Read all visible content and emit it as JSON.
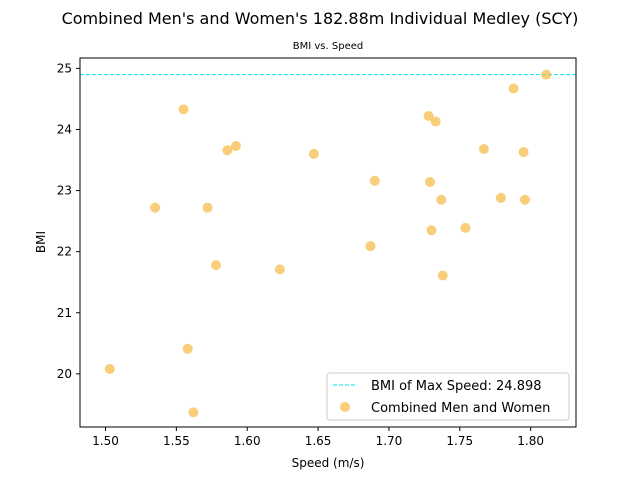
{
  "chart_data": {
    "type": "scatter",
    "title": "Combined Men's and Women's 182.88m Individual Medley (SCY)",
    "subtitle": "BMI vs. Speed",
    "xlabel": "Speed (m/s)",
    "ylabel": "BMI",
    "xlim": [
      1.482,
      1.832
    ],
    "ylim": [
      19.13,
      25.17
    ],
    "xticks": [
      "1.50",
      "1.55",
      "1.60",
      "1.65",
      "1.70",
      "1.75",
      "1.80"
    ],
    "yticks": [
      "20",
      "21",
      "22",
      "23",
      "24",
      "25"
    ],
    "grid": false,
    "legend_position": "lower-right",
    "reference_line": {
      "label": "BMI of Max Speed: 24.898",
      "y": 24.898,
      "color": "#00e5e5",
      "style": "dashed"
    },
    "series": [
      {
        "name": "Combined Men and Women",
        "color": "#f5b942",
        "points": [
          {
            "x": 1.503,
            "y": 20.08
          },
          {
            "x": 1.535,
            "y": 22.72
          },
          {
            "x": 1.555,
            "y": 24.33
          },
          {
            "x": 1.558,
            "y": 20.41
          },
          {
            "x": 1.562,
            "y": 19.37
          },
          {
            "x": 1.572,
            "y": 22.72
          },
          {
            "x": 1.578,
            "y": 21.78
          },
          {
            "x": 1.586,
            "y": 23.66
          },
          {
            "x": 1.592,
            "y": 23.73
          },
          {
            "x": 1.623,
            "y": 21.71
          },
          {
            "x": 1.647,
            "y": 23.6
          },
          {
            "x": 1.687,
            "y": 22.09
          },
          {
            "x": 1.69,
            "y": 23.16
          },
          {
            "x": 1.728,
            "y": 24.22
          },
          {
            "x": 1.729,
            "y": 23.14
          },
          {
            "x": 1.73,
            "y": 22.35
          },
          {
            "x": 1.733,
            "y": 24.13
          },
          {
            "x": 1.737,
            "y": 22.85
          },
          {
            "x": 1.738,
            "y": 21.61
          },
          {
            "x": 1.754,
            "y": 22.39
          },
          {
            "x": 1.767,
            "y": 23.68
          },
          {
            "x": 1.779,
            "y": 22.88
          },
          {
            "x": 1.788,
            "y": 24.67
          },
          {
            "x": 1.795,
            "y": 23.63
          },
          {
            "x": 1.796,
            "y": 22.85
          },
          {
            "x": 1.811,
            "y": 24.898
          }
        ]
      }
    ]
  }
}
